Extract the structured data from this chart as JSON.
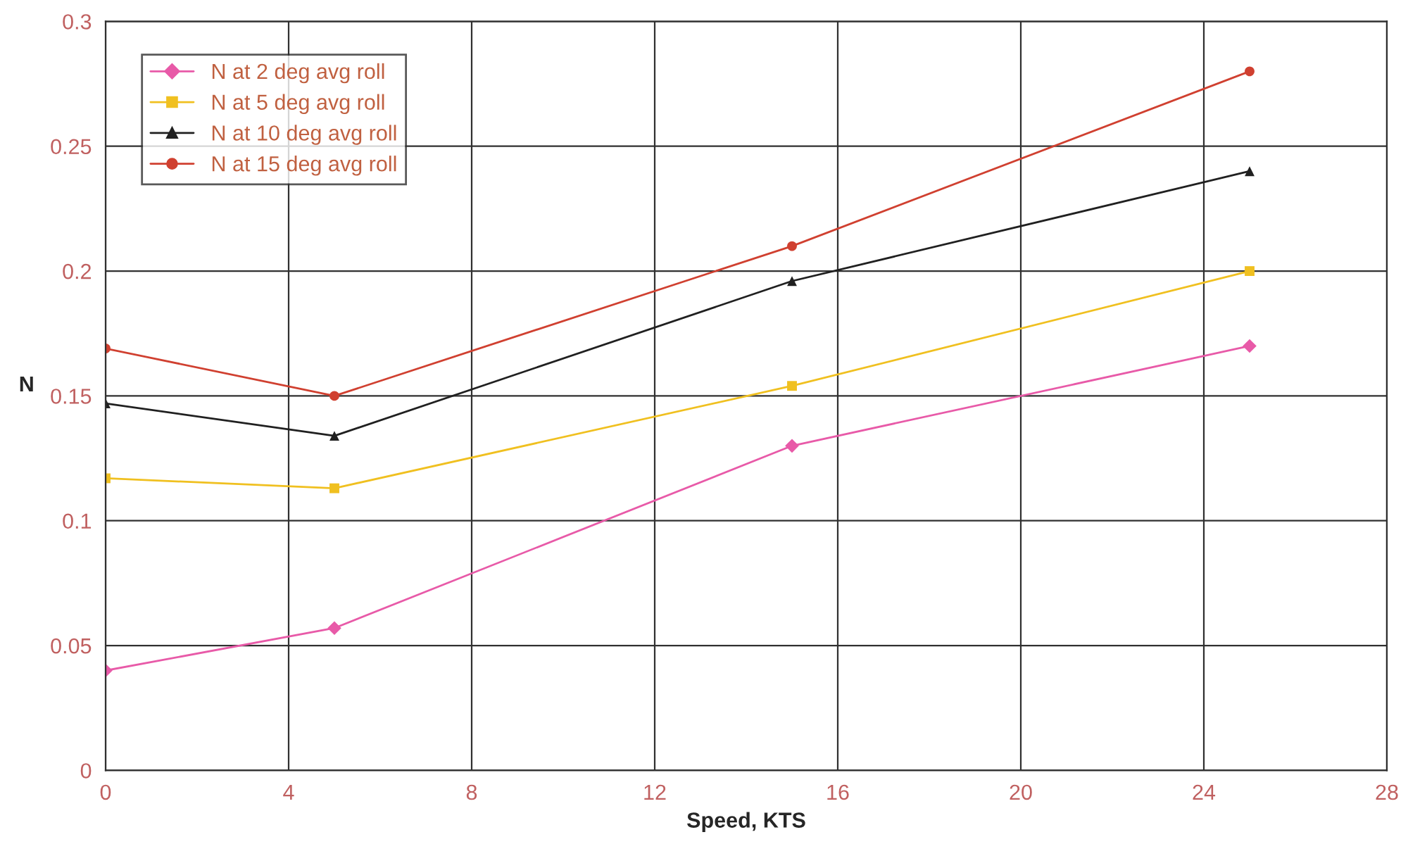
{
  "chart_data": {
    "type": "line",
    "xlabel": "Speed, KTS",
    "ylabel": "N",
    "x": [
      0,
      5,
      15,
      25
    ],
    "series": [
      {
        "name": "N at 2 deg avg roll",
        "color": "#e85aa8",
        "marker": "diamond",
        "values": [
          0.04,
          0.057,
          0.13,
          0.17
        ]
      },
      {
        "name": "N at 5 deg avg roll",
        "color": "#f0c020",
        "marker": "square",
        "values": [
          0.117,
          0.113,
          0.154,
          0.2
        ]
      },
      {
        "name": "N at 10 deg avg roll",
        "color": "#202020",
        "marker": "triangle",
        "values": [
          0.147,
          0.134,
          0.196,
          0.24
        ]
      },
      {
        "name": "N at 15 deg avg roll",
        "color": "#d04030",
        "marker": "circle",
        "values": [
          0.169,
          0.15,
          0.21,
          0.28
        ]
      }
    ],
    "xlim": [
      0,
      28
    ],
    "xticks": [
      0,
      4,
      8,
      12,
      16,
      20,
      24,
      28
    ],
    "ylim": [
      0,
      0.3
    ],
    "yticks": [
      0,
      0.05,
      0.1,
      0.15,
      0.2,
      0.25,
      0.3
    ],
    "grid": true,
    "legend": "top left"
  }
}
